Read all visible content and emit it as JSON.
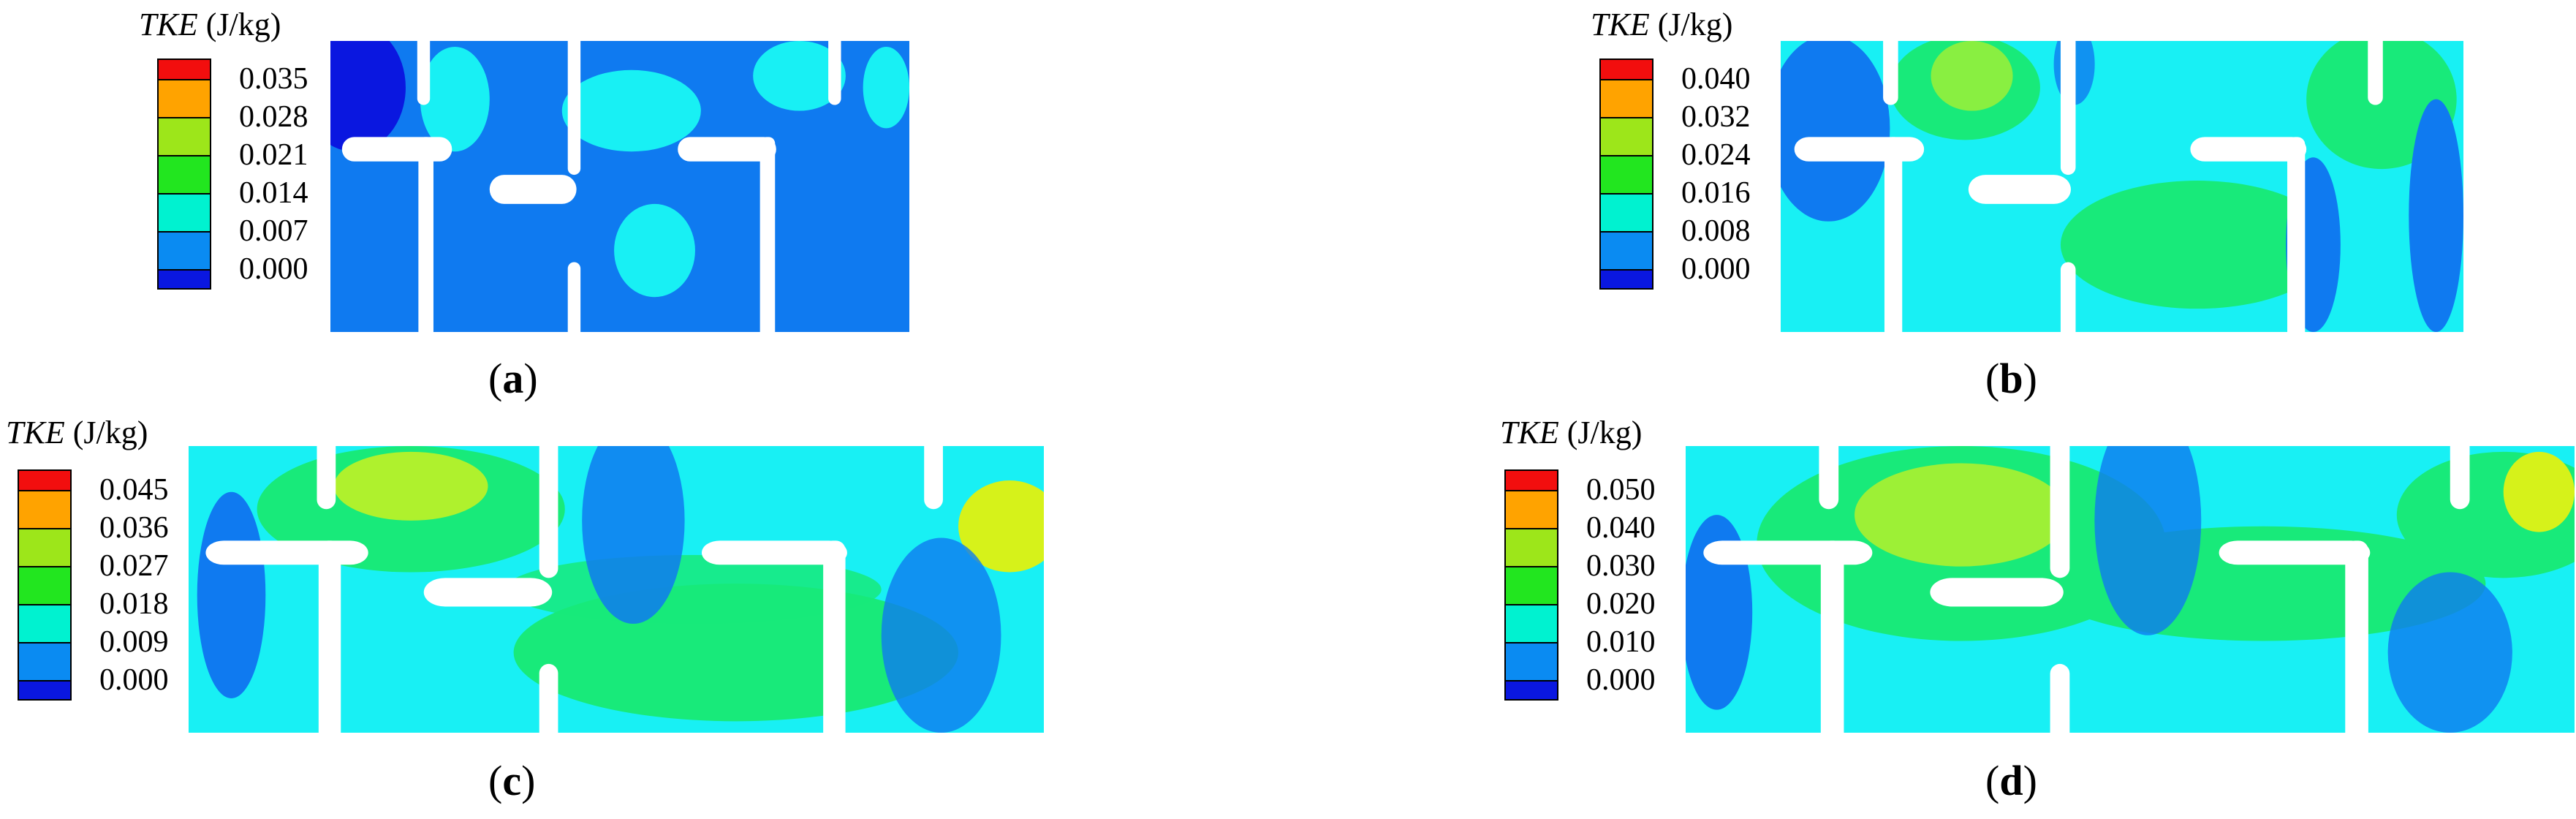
{
  "unit_label": "(J/kg)",
  "quantity_label": "TKE",
  "colors": {
    "c0": "#0a17e0",
    "c1": "#0a8bf2",
    "c2": "#00f2d0",
    "c3": "#22e61f",
    "c4": "#9de61a",
    "c5": "#ffa300",
    "c6": "#f20e0e",
    "cyan": "#18f0f4",
    "blue": "#0f7af0",
    "green": "#18ea7a",
    "yellow": "#d6f21a"
  },
  "panels": [
    {
      "caption_letter": "a",
      "ticks": [
        "0.035",
        "0.028",
        "0.021",
        "0.014",
        "0.007",
        "0.000"
      ]
    },
    {
      "caption_letter": "b",
      "ticks": [
        "0.040",
        "0.032",
        "0.024",
        "0.016",
        "0.008",
        "0.000"
      ]
    },
    {
      "caption_letter": "c",
      "ticks": [
        "0.045",
        "0.036",
        "0.027",
        "0.018",
        "0.009",
        "0.000"
      ]
    },
    {
      "caption_letter": "d",
      "ticks": [
        "0.050",
        "0.040",
        "0.030",
        "0.020",
        "0.010",
        "0.000"
      ]
    }
  ]
}
